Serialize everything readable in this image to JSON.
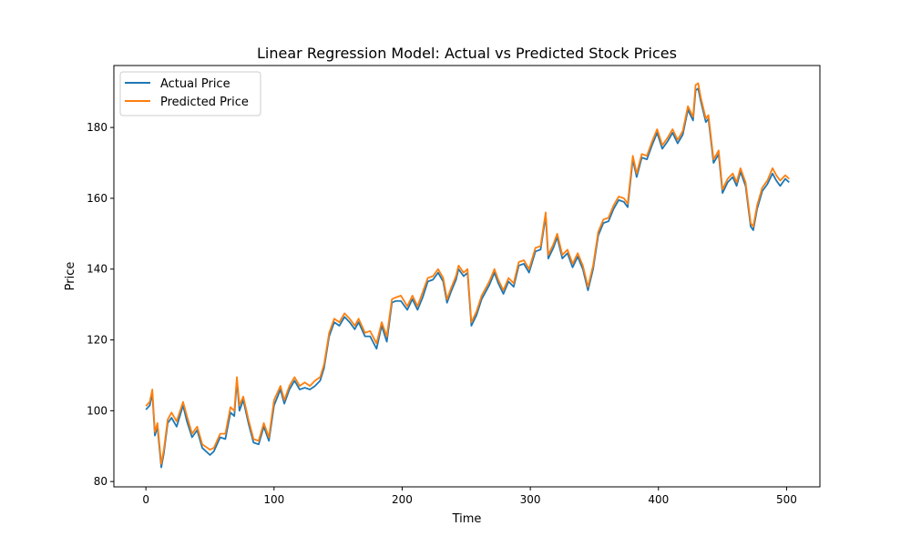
{
  "chart_data": {
    "type": "line",
    "title": "Linear Regression Model: Actual vs Predicted Stock Prices",
    "xlabel": "Time",
    "ylabel": "Price",
    "xlim": [
      -25,
      526
    ],
    "ylim": [
      78.5,
      197.5
    ],
    "xticks": [
      0,
      100,
      200,
      300,
      400,
      500
    ],
    "yticks": [
      80,
      100,
      120,
      140,
      160,
      180
    ],
    "grid": false,
    "legend_position": "top-left",
    "series": [
      {
        "name": "Actual Price",
        "color": "#1f77b4",
        "anchors": [
          [
            0,
            100.3
          ],
          [
            3,
            101.5
          ],
          [
            5,
            105
          ],
          [
            7,
            93
          ],
          [
            9,
            95.5
          ],
          [
            12,
            84
          ],
          [
            14,
            88
          ],
          [
            17,
            96.5
          ],
          [
            20,
            98
          ],
          [
            24,
            95.5
          ],
          [
            29,
            101.5
          ],
          [
            32,
            97
          ],
          [
            36,
            92.5
          ],
          [
            40,
            94.5
          ],
          [
            44,
            89.5
          ],
          [
            50,
            87.5
          ],
          [
            53,
            88.5
          ],
          [
            58,
            92.5
          ],
          [
            62,
            92
          ],
          [
            66,
            99.5
          ],
          [
            69,
            98.5
          ],
          [
            71,
            108.5
          ],
          [
            73,
            100
          ],
          [
            76,
            103
          ],
          [
            80,
            96.5
          ],
          [
            84,
            91
          ],
          [
            88,
            90.5
          ],
          [
            92,
            95.5
          ],
          [
            96,
            91.5
          ],
          [
            100,
            101.5
          ],
          [
            105,
            106
          ],
          [
            108,
            102
          ],
          [
            112,
            106
          ],
          [
            116,
            108.5
          ],
          [
            120,
            106
          ],
          [
            124,
            106.5
          ],
          [
            128,
            106
          ],
          [
            132,
            107
          ],
          [
            136,
            108.5
          ],
          [
            139,
            112
          ],
          [
            143,
            121
          ],
          [
            147,
            125
          ],
          [
            151,
            124
          ],
          [
            155,
            126.5
          ],
          [
            159,
            125
          ],
          [
            163,
            123
          ],
          [
            166,
            125
          ],
          [
            171,
            121
          ],
          [
            175,
            121
          ],
          [
            180,
            117.5
          ],
          [
            184,
            124
          ],
          [
            188,
            119.5
          ],
          [
            192,
            130.5
          ],
          [
            195,
            131
          ],
          [
            199,
            131
          ],
          [
            204,
            128.5
          ],
          [
            208,
            131.5
          ],
          [
            212,
            128.5
          ],
          [
            216,
            132
          ],
          [
            220,
            136.5
          ],
          [
            224,
            137
          ],
          [
            228,
            139
          ],
          [
            232,
            136.5
          ],
          [
            235,
            130.5
          ],
          [
            238,
            133.5
          ],
          [
            242,
            137
          ],
          [
            244,
            140
          ],
          [
            248,
            138
          ],
          [
            251,
            139
          ],
          [
            254,
            124
          ],
          [
            258,
            127
          ],
          [
            262,
            131.5
          ],
          [
            265,
            133.5
          ],
          [
            268,
            135.5
          ],
          [
            272,
            139
          ],
          [
            275,
            136
          ],
          [
            279,
            133
          ],
          [
            283,
            136.5
          ],
          [
            287,
            135
          ],
          [
            291,
            141
          ],
          [
            295,
            141.5
          ],
          [
            299,
            139
          ],
          [
            304,
            145
          ],
          [
            308,
            145.5
          ],
          [
            312,
            155
          ],
          [
            314,
            143
          ],
          [
            318,
            146
          ],
          [
            321,
            149
          ],
          [
            325,
            143
          ],
          [
            329,
            144.5
          ],
          [
            333,
            140.5
          ],
          [
            337,
            143.5
          ],
          [
            341,
            140
          ],
          [
            345,
            134
          ],
          [
            349,
            140
          ],
          [
            353,
            149.5
          ],
          [
            357,
            153
          ],
          [
            361,
            153.5
          ],
          [
            365,
            157
          ],
          [
            369,
            159.5
          ],
          [
            373,
            159
          ],
          [
            376,
            157.5
          ],
          [
            380,
            171
          ],
          [
            383,
            166
          ],
          [
            387,
            171.5
          ],
          [
            391,
            171
          ],
          [
            395,
            175
          ],
          [
            399,
            178.5
          ],
          [
            403,
            174
          ],
          [
            407,
            176
          ],
          [
            411,
            178.5
          ],
          [
            415,
            175.5
          ],
          [
            419,
            178
          ],
          [
            423,
            185
          ],
          [
            427,
            182
          ],
          [
            429,
            190.5
          ],
          [
            431,
            191
          ],
          [
            433,
            187.5
          ],
          [
            437,
            181.5
          ],
          [
            439,
            182.5
          ],
          [
            443,
            170
          ],
          [
            447,
            172.5
          ],
          [
            450,
            161.5
          ],
          [
            454,
            164.5
          ],
          [
            458,
            166
          ],
          [
            461,
            163.5
          ],
          [
            464,
            167.5
          ],
          [
            468,
            163.5
          ],
          [
            472,
            152
          ],
          [
            474,
            151
          ],
          [
            477,
            157
          ],
          [
            481,
            162
          ],
          [
            485,
            164
          ],
          [
            489,
            167
          ],
          [
            492,
            165
          ],
          [
            495,
            163.5
          ],
          [
            499,
            165.5
          ],
          [
            502,
            164.5
          ]
        ]
      },
      {
        "name": "Predicted Price",
        "color": "#ff7f0e",
        "anchors": [
          [
            0,
            101.3
          ],
          [
            3,
            102.5
          ],
          [
            5,
            106
          ],
          [
            7,
            94
          ],
          [
            9,
            96.5
          ],
          [
            12,
            85
          ],
          [
            14,
            89
          ],
          [
            17,
            97.5
          ],
          [
            20,
            99.5
          ],
          [
            24,
            97
          ],
          [
            29,
            102.5
          ],
          [
            32,
            98.5
          ],
          [
            36,
            93.5
          ],
          [
            40,
            95.5
          ],
          [
            44,
            90.5
          ],
          [
            50,
            89
          ],
          [
            53,
            89.5
          ],
          [
            58,
            93.5
          ],
          [
            62,
            93.5
          ],
          [
            66,
            101
          ],
          [
            69,
            100
          ],
          [
            71,
            109.5
          ],
          [
            73,
            101.5
          ],
          [
            76,
            104
          ],
          [
            80,
            97.5
          ],
          [
            84,
            92
          ],
          [
            88,
            91.5
          ],
          [
            92,
            96.5
          ],
          [
            96,
            92.5
          ],
          [
            100,
            103
          ],
          [
            105,
            107
          ],
          [
            108,
            103
          ],
          [
            112,
            107
          ],
          [
            116,
            109.5
          ],
          [
            120,
            107
          ],
          [
            124,
            108
          ],
          [
            128,
            107
          ],
          [
            132,
            108.5
          ],
          [
            136,
            109.5
          ],
          [
            139,
            113
          ],
          [
            143,
            122
          ],
          [
            147,
            126
          ],
          [
            151,
            125
          ],
          [
            155,
            127.5
          ],
          [
            159,
            126
          ],
          [
            163,
            124
          ],
          [
            166,
            126
          ],
          [
            171,
            122
          ],
          [
            175,
            122.5
          ],
          [
            180,
            119
          ],
          [
            184,
            125
          ],
          [
            188,
            121
          ],
          [
            192,
            131.5
          ],
          [
            195,
            132
          ],
          [
            199,
            132.5
          ],
          [
            204,
            129.5
          ],
          [
            208,
            132.5
          ],
          [
            212,
            129.5
          ],
          [
            216,
            133.5
          ],
          [
            220,
            137.5
          ],
          [
            224,
            138
          ],
          [
            228,
            140
          ],
          [
            232,
            137.5
          ],
          [
            235,
            131.5
          ],
          [
            238,
            134.5
          ],
          [
            242,
            138
          ],
          [
            244,
            141
          ],
          [
            248,
            139
          ],
          [
            251,
            140
          ],
          [
            254,
            125
          ],
          [
            258,
            128
          ],
          [
            262,
            132.5
          ],
          [
            265,
            134.5
          ],
          [
            268,
            136.5
          ],
          [
            272,
            140
          ],
          [
            275,
            137
          ],
          [
            279,
            134
          ],
          [
            283,
            137.5
          ],
          [
            287,
            136
          ],
          [
            291,
            142
          ],
          [
            295,
            142.5
          ],
          [
            299,
            140
          ],
          [
            304,
            146
          ],
          [
            308,
            146.5
          ],
          [
            312,
            156
          ],
          [
            314,
            144
          ],
          [
            318,
            147
          ],
          [
            321,
            150
          ],
          [
            325,
            144
          ],
          [
            329,
            145.5
          ],
          [
            333,
            141.5
          ],
          [
            337,
            144.5
          ],
          [
            341,
            141
          ],
          [
            345,
            135
          ],
          [
            349,
            141
          ],
          [
            353,
            150.5
          ],
          [
            357,
            154
          ],
          [
            361,
            154.5
          ],
          [
            365,
            158
          ],
          [
            369,
            160.5
          ],
          [
            373,
            160
          ],
          [
            376,
            158.5
          ],
          [
            380,
            172
          ],
          [
            383,
            167
          ],
          [
            387,
            172.5
          ],
          [
            391,
            172
          ],
          [
            395,
            176
          ],
          [
            399,
            179.5
          ],
          [
            403,
            175
          ],
          [
            407,
            177
          ],
          [
            411,
            179.5
          ],
          [
            415,
            176.5
          ],
          [
            419,
            179
          ],
          [
            423,
            186
          ],
          [
            427,
            183
          ],
          [
            429,
            192
          ],
          [
            431,
            192.5
          ],
          [
            433,
            188.5
          ],
          [
            437,
            182.5
          ],
          [
            439,
            183.5
          ],
          [
            443,
            171
          ],
          [
            447,
            173.5
          ],
          [
            450,
            162.5
          ],
          [
            454,
            165.5
          ],
          [
            458,
            167
          ],
          [
            461,
            164.5
          ],
          [
            464,
            168.5
          ],
          [
            468,
            164.5
          ],
          [
            472,
            153
          ],
          [
            474,
            152
          ],
          [
            477,
            158
          ],
          [
            481,
            163
          ],
          [
            485,
            165
          ],
          [
            489,
            168.5
          ],
          [
            492,
            166.5
          ],
          [
            495,
            165
          ],
          [
            499,
            166.5
          ],
          [
            502,
            165.5
          ]
        ]
      }
    ]
  }
}
